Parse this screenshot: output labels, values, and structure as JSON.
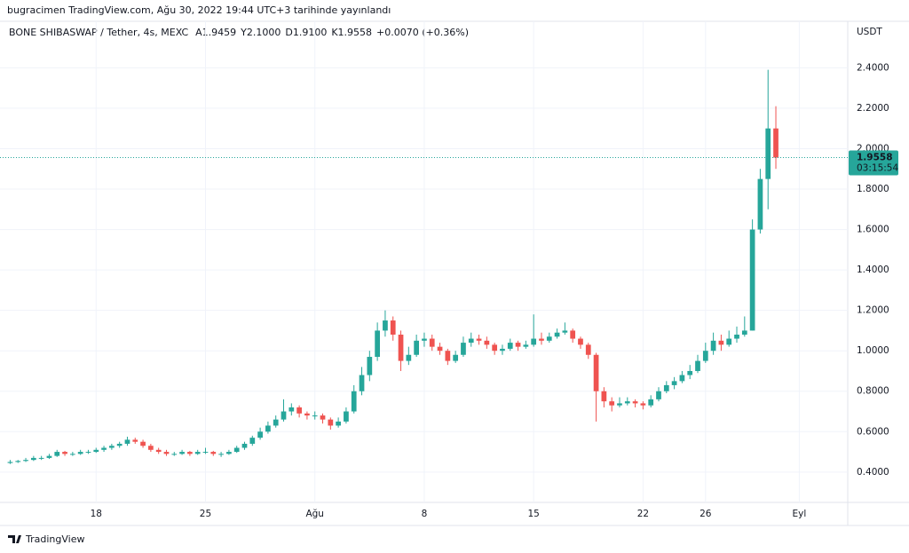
{
  "chart_data": {
    "type": "candlestick",
    "published": "bugracimen TradingView.com, Ağu 30, 2022 19:44 UTC+3 tarihinde yayınlandı",
    "symbol": "BONE SHIBASWAP / Tether, 4s, MEXC",
    "legend_values": [
      "A1.9459",
      "Y2.1000",
      "D1.9100",
      "K1.9558",
      "+0.0070 (+0.36%)"
    ],
    "y_axis_label": "USDT",
    "brand": "TradingView",
    "up_color": "#26a69a",
    "down_color": "#ef5350",
    "grid": true,
    "last_price": 1.9558,
    "countdown": "03:15:54",
    "ylim": [
      0.25,
      2.63
    ],
    "yticks": [
      {
        "value": 0.4,
        "label": "0.4000"
      },
      {
        "value": 0.6,
        "label": "0.6000"
      },
      {
        "value": 0.8,
        "label": "0.8000"
      },
      {
        "value": 1.0,
        "label": "1.0000"
      },
      {
        "value": 1.2,
        "label": "1.2000"
      },
      {
        "value": 1.4,
        "label": "1.4000"
      },
      {
        "value": 1.6,
        "label": "1.6000"
      },
      {
        "value": 1.8,
        "label": "1.8000"
      },
      {
        "value": 2.0,
        "label": "2.0000"
      },
      {
        "value": 2.2,
        "label": "2.2000"
      },
      {
        "value": 2.4,
        "label": "2.4000"
      }
    ],
    "xlim": [
      -1.3,
      107.2
    ],
    "xticks": [
      {
        "value": 11,
        "label": "18"
      },
      {
        "value": 25,
        "label": "25"
      },
      {
        "value": 39,
        "label": "Ağu"
      },
      {
        "value": 53,
        "label": "8"
      },
      {
        "value": 67,
        "label": "15"
      },
      {
        "value": 81,
        "label": "22"
      },
      {
        "value": 89,
        "label": "26"
      },
      {
        "value": 101,
        "label": "Eyl"
      }
    ],
    "candles": [
      [
        0.445,
        0.46,
        0.44,
        0.45
      ],
      [
        0.45,
        0.46,
        0.445,
        0.455
      ],
      [
        0.455,
        0.47,
        0.45,
        0.46
      ],
      [
        0.46,
        0.48,
        0.455,
        0.47
      ],
      [
        0.47,
        0.48,
        0.46,
        0.47
      ],
      [
        0.47,
        0.49,
        0.465,
        0.48
      ],
      [
        0.48,
        0.51,
        0.475,
        0.5
      ],
      [
        0.5,
        0.505,
        0.48,
        0.49
      ],
      [
        0.49,
        0.5,
        0.48,
        0.49
      ],
      [
        0.49,
        0.51,
        0.485,
        0.5
      ],
      [
        0.5,
        0.51,
        0.49,
        0.5
      ],
      [
        0.5,
        0.52,
        0.495,
        0.51
      ],
      [
        0.51,
        0.53,
        0.5,
        0.52
      ],
      [
        0.52,
        0.54,
        0.51,
        0.53
      ],
      [
        0.53,
        0.55,
        0.52,
        0.54
      ],
      [
        0.54,
        0.575,
        0.53,
        0.56
      ],
      [
        0.56,
        0.57,
        0.54,
        0.55
      ],
      [
        0.55,
        0.56,
        0.52,
        0.53
      ],
      [
        0.53,
        0.54,
        0.5,
        0.51
      ],
      [
        0.51,
        0.52,
        0.49,
        0.5
      ],
      [
        0.5,
        0.51,
        0.48,
        0.49
      ],
      [
        0.49,
        0.5,
        0.48,
        0.49
      ],
      [
        0.49,
        0.51,
        0.485,
        0.5
      ],
      [
        0.5,
        0.505,
        0.48,
        0.49
      ],
      [
        0.49,
        0.51,
        0.485,
        0.5
      ],
      [
        0.5,
        0.52,
        0.49,
        0.5
      ],
      [
        0.5,
        0.505,
        0.48,
        0.49
      ],
      [
        0.49,
        0.5,
        0.475,
        0.49
      ],
      [
        0.49,
        0.51,
        0.485,
        0.5
      ],
      [
        0.5,
        0.53,
        0.495,
        0.52
      ],
      [
        0.52,
        0.55,
        0.51,
        0.54
      ],
      [
        0.54,
        0.58,
        0.53,
        0.57
      ],
      [
        0.57,
        0.62,
        0.56,
        0.6
      ],
      [
        0.6,
        0.65,
        0.59,
        0.63
      ],
      [
        0.63,
        0.68,
        0.62,
        0.66
      ],
      [
        0.66,
        0.76,
        0.65,
        0.7
      ],
      [
        0.7,
        0.74,
        0.68,
        0.72
      ],
      [
        0.72,
        0.73,
        0.67,
        0.69
      ],
      [
        0.69,
        0.7,
        0.66,
        0.68
      ],
      [
        0.68,
        0.7,
        0.66,
        0.68
      ],
      [
        0.68,
        0.69,
        0.64,
        0.66
      ],
      [
        0.66,
        0.67,
        0.61,
        0.63
      ],
      [
        0.63,
        0.67,
        0.62,
        0.65
      ],
      [
        0.65,
        0.72,
        0.64,
        0.7
      ],
      [
        0.7,
        0.83,
        0.69,
        0.8
      ],
      [
        0.8,
        0.92,
        0.78,
        0.88
      ],
      [
        0.88,
        1.0,
        0.85,
        0.97
      ],
      [
        0.97,
        1.14,
        0.95,
        1.1
      ],
      [
        1.1,
        1.2,
        1.07,
        1.15
      ],
      [
        1.15,
        1.17,
        1.05,
        1.08
      ],
      [
        1.08,
        1.1,
        0.9,
        0.95
      ],
      [
        0.95,
        1.02,
        0.93,
        0.98
      ],
      [
        0.98,
        1.08,
        0.97,
        1.05
      ],
      [
        1.05,
        1.09,
        1.02,
        1.06
      ],
      [
        1.06,
        1.08,
        1.0,
        1.02
      ],
      [
        1.02,
        1.04,
        0.98,
        1.0
      ],
      [
        1.0,
        1.01,
        0.93,
        0.95
      ],
      [
        0.95,
        1.0,
        0.94,
        0.98
      ],
      [
        0.98,
        1.07,
        0.97,
        1.04
      ],
      [
        1.04,
        1.09,
        1.02,
        1.06
      ],
      [
        1.06,
        1.08,
        1.03,
        1.05
      ],
      [
        1.05,
        1.07,
        1.01,
        1.03
      ],
      [
        1.03,
        1.04,
        0.98,
        1.0
      ],
      [
        1.0,
        1.03,
        0.98,
        1.01
      ],
      [
        1.01,
        1.06,
        1.0,
        1.04
      ],
      [
        1.04,
        1.05,
        1.0,
        1.02
      ],
      [
        1.02,
        1.05,
        1.01,
        1.03
      ],
      [
        1.03,
        1.18,
        1.02,
        1.06
      ],
      [
        1.06,
        1.09,
        1.03,
        1.05
      ],
      [
        1.05,
        1.09,
        1.04,
        1.07
      ],
      [
        1.07,
        1.11,
        1.06,
        1.09
      ],
      [
        1.09,
        1.14,
        1.08,
        1.1
      ],
      [
        1.1,
        1.11,
        1.04,
        1.06
      ],
      [
        1.06,
        1.07,
        1.01,
        1.03
      ],
      [
        1.03,
        1.04,
        0.96,
        0.98
      ],
      [
        0.98,
        0.99,
        0.65,
        0.8
      ],
      [
        0.8,
        0.82,
        0.72,
        0.75
      ],
      [
        0.75,
        0.77,
        0.7,
        0.73
      ],
      [
        0.73,
        0.77,
        0.72,
        0.74
      ],
      [
        0.74,
        0.77,
        0.73,
        0.75
      ],
      [
        0.75,
        0.76,
        0.72,
        0.74
      ],
      [
        0.74,
        0.75,
        0.71,
        0.73
      ],
      [
        0.73,
        0.78,
        0.72,
        0.76
      ],
      [
        0.76,
        0.82,
        0.75,
        0.8
      ],
      [
        0.8,
        0.85,
        0.79,
        0.83
      ],
      [
        0.83,
        0.87,
        0.81,
        0.85
      ],
      [
        0.85,
        0.9,
        0.84,
        0.88
      ],
      [
        0.88,
        0.93,
        0.86,
        0.9
      ],
      [
        0.9,
        0.98,
        0.89,
        0.95
      ],
      [
        0.95,
        1.04,
        0.94,
        1.0
      ],
      [
        1.0,
        1.09,
        0.98,
        1.05
      ],
      [
        1.05,
        1.08,
        1.0,
        1.03
      ],
      [
        1.03,
        1.1,
        1.02,
        1.06
      ],
      [
        1.06,
        1.12,
        1.04,
        1.08
      ],
      [
        1.08,
        1.17,
        1.07,
        1.1
      ],
      [
        1.1,
        1.65,
        1.1,
        1.6
      ],
      [
        1.6,
        1.9,
        1.58,
        1.85
      ],
      [
        1.85,
        2.39,
        1.7,
        2.1
      ],
      [
        2.1,
        2.21,
        1.9,
        1.9558
      ]
    ]
  }
}
